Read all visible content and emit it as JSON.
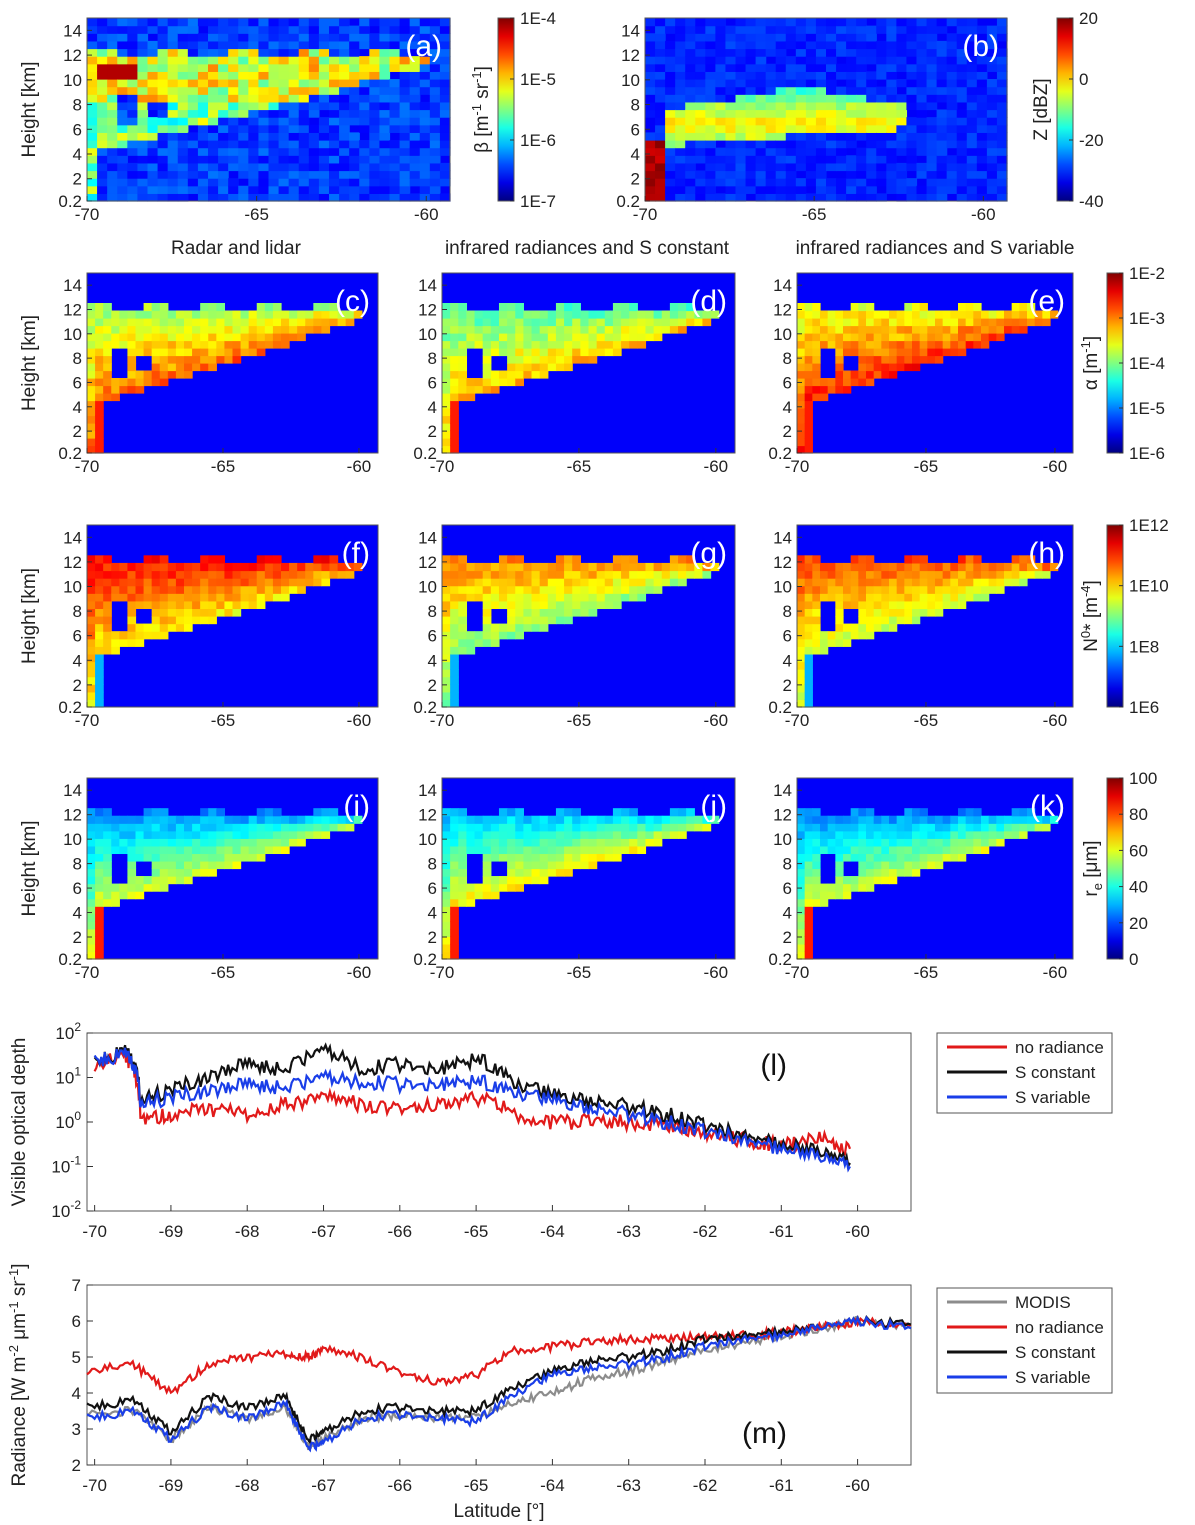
{
  "figure": {
    "column_titles": [
      "Radar and lidar",
      "infrared radiances and S constant",
      "infrared radiances and S variable"
    ]
  },
  "chart_data": [
    {
      "type": "heatmap",
      "panel": "(a)",
      "variable": "backscatter",
      "xlabel": "",
      "ylabel": "Height [km]",
      "xlim": [
        -70,
        -59.3
      ],
      "xticks": [
        "-70",
        "-65",
        "-60"
      ],
      "ylim": [
        0.2,
        15
      ],
      "yticks": [
        "0.2",
        "2",
        "4",
        "6",
        "8",
        "10",
        "12",
        "14"
      ],
      "colorbar": {
        "label": "β [m-1 sr-1]",
        "label_parts": [
          "β [m",
          "-1",
          " sr",
          "-1",
          "]"
        ],
        "ticks": [
          "1E-4",
          "1E-5",
          "1E-6",
          "1E-7"
        ],
        "scale": "log"
      }
    },
    {
      "type": "heatmap",
      "panel": "(b)",
      "variable": "reflectivity",
      "xlabel": "",
      "ylabel": "",
      "xlim": [
        -70,
        -59.3
      ],
      "xticks": [
        "-70",
        "-65",
        "-60"
      ],
      "ylim": [
        0.2,
        15
      ],
      "yticks": [
        "0.2",
        "2",
        "4",
        "6",
        "8",
        "10",
        "12",
        "14"
      ],
      "colorbar": {
        "label": "Z [dBZ]",
        "ticks": [
          "20",
          "0",
          "-20",
          "-40"
        ],
        "scale": "linear"
      }
    },
    {
      "type": "heatmap",
      "panel": "(c)",
      "variable": "extinction",
      "ylabel": "Height [km]",
      "xlim": [
        -70,
        -59.3
      ],
      "xticks": [
        "-70",
        "-65",
        "-60"
      ],
      "ylim": [
        0.2,
        15
      ],
      "yticks": [
        "0.2",
        "2",
        "4",
        "6",
        "8",
        "10",
        "12",
        "14"
      ]
    },
    {
      "type": "heatmap",
      "panel": "(d)",
      "variable": "extinction",
      "ylabel": "",
      "xlim": [
        -70,
        -59.3
      ],
      "xticks": [
        "-70",
        "-65",
        "-60"
      ],
      "ylim": [
        0.2,
        15
      ],
      "yticks": [
        "0.2",
        "2",
        "4",
        "6",
        "8",
        "10",
        "12",
        "14"
      ]
    },
    {
      "type": "heatmap",
      "panel": "(e)",
      "variable": "extinction",
      "ylabel": "",
      "xlim": [
        -70,
        -59.3
      ],
      "xticks": [
        "-70",
        "-65",
        "-60"
      ],
      "ylim": [
        0.2,
        15
      ],
      "yticks": [
        "0.2",
        "2",
        "4",
        "6",
        "8",
        "10",
        "12",
        "14"
      ],
      "colorbar": {
        "label": "α [m-1]",
        "label_parts": [
          "α [m",
          "-1",
          "]"
        ],
        "ticks": [
          "1E-2",
          "1E-3",
          "1E-4",
          "1E-5",
          "1E-6"
        ],
        "scale": "log"
      }
    },
    {
      "type": "heatmap",
      "panel": "(f)",
      "variable": "N0star",
      "ylabel": "Height [km]",
      "xlim": [
        -70,
        -59.3
      ],
      "xticks": [
        "-70",
        "-65",
        "-60"
      ],
      "ylim": [
        0.2,
        15
      ],
      "yticks": [
        "0.2",
        "2",
        "4",
        "6",
        "8",
        "10",
        "12",
        "14"
      ]
    },
    {
      "type": "heatmap",
      "panel": "(g)",
      "variable": "N0star",
      "ylabel": "",
      "xlim": [
        -70,
        -59.3
      ],
      "xticks": [
        "-70",
        "-65",
        "-60"
      ],
      "ylim": [
        0.2,
        15
      ],
      "yticks": [
        "0.2",
        "2",
        "4",
        "6",
        "8",
        "10",
        "12",
        "14"
      ]
    },
    {
      "type": "heatmap",
      "panel": "(h)",
      "variable": "N0star",
      "ylabel": "",
      "xlim": [
        -70,
        -59.3
      ],
      "xticks": [
        "-70",
        "-65",
        "-60"
      ],
      "ylim": [
        0.2,
        15
      ],
      "yticks": [
        "0.2",
        "2",
        "4",
        "6",
        "8",
        "10",
        "12",
        "14"
      ],
      "colorbar": {
        "label": "N0* [m-4]",
        "label_parts": [
          "N",
          "0",
          "* [m",
          "-4",
          "]"
        ],
        "ticks": [
          "1E12",
          "1E10",
          "1E8",
          "1E6"
        ],
        "scale": "log"
      }
    },
    {
      "type": "heatmap",
      "panel": "(i)",
      "variable": "re",
      "ylabel": "Height [km]",
      "xlim": [
        -70,
        -59.3
      ],
      "xticks": [
        "-70",
        "-65",
        "-60"
      ],
      "ylim": [
        0.2,
        15
      ],
      "yticks": [
        "0.2",
        "2",
        "4",
        "6",
        "8",
        "10",
        "12",
        "14"
      ]
    },
    {
      "type": "heatmap",
      "panel": "(j)",
      "variable": "re",
      "ylabel": "",
      "xlim": [
        -70,
        -59.3
      ],
      "xticks": [
        "-70",
        "-65",
        "-60"
      ],
      "ylim": [
        0.2,
        15
      ],
      "yticks": [
        "0.2",
        "2",
        "4",
        "6",
        "8",
        "10",
        "12",
        "14"
      ]
    },
    {
      "type": "heatmap",
      "panel": "(k)",
      "variable": "re",
      "ylabel": "",
      "xlim": [
        -70,
        -59.3
      ],
      "xticks": [
        "-70",
        "-65",
        "-60"
      ],
      "ylim": [
        0.2,
        15
      ],
      "yticks": [
        "0.2",
        "2",
        "4",
        "6",
        "8",
        "10",
        "12",
        "14"
      ],
      "colorbar": {
        "label": "re [μm]",
        "label_parts": [
          "r",
          "e",
          " [μm]"
        ],
        "ticks": [
          "100",
          "80",
          "60",
          "40",
          "20",
          "0"
        ],
        "scale": "linear"
      }
    },
    {
      "type": "line",
      "panel": "(l)",
      "xlabel": "",
      "ylabel": "Visible optical depth",
      "xlim": [
        -70.1,
        -59.3
      ],
      "xticks": [
        "-70",
        "-69",
        "-68",
        "-67",
        "-66",
        "-65",
        "-64",
        "-63",
        "-62",
        "-61",
        "-60"
      ],
      "yscale": "log",
      "ylim": [
        0.01,
        100
      ],
      "yticks": [
        "10-2",
        "10-1",
        "100",
        "101",
        "102"
      ],
      "legend": {
        "position": "outside-right",
        "entries": [
          "no radiance",
          "S constant",
          "S variable"
        ]
      },
      "x": [
        -70,
        -69.6,
        -69.4,
        -69,
        -68.5,
        -68,
        -67.5,
        -67,
        -66.5,
        -66,
        -65.5,
        -65,
        -64.5,
        -64,
        -63.5,
        -63,
        -62.5,
        -62,
        -61.5,
        -61,
        -60.5,
        -60.1
      ],
      "series": [
        {
          "name": "no radiance",
          "color": "#e11a1a",
          "values": [
            18,
            30,
            1.2,
            1.4,
            2.0,
            1.5,
            2.5,
            3.5,
            2.5,
            2.2,
            2.5,
            3.5,
            1.5,
            1.0,
            1.0,
            1.0,
            0.8,
            0.6,
            0.4,
            0.3,
            0.4,
            0.25
          ]
        },
        {
          "name": "S constant",
          "color": "#111111",
          "values": [
            20,
            40,
            3.0,
            5.0,
            10,
            20,
            15,
            40,
            15,
            20,
            15,
            25,
            8,
            4,
            3,
            2.2,
            1.5,
            0.8,
            0.5,
            0.3,
            0.2,
            0.12
          ]
        },
        {
          "name": "S variable",
          "color": "#1a3ee8",
          "values": [
            22,
            35,
            2.5,
            3.5,
            5,
            7,
            6,
            10,
            8,
            7,
            7,
            8,
            5,
            3,
            2.0,
            1.5,
            1.0,
            0.6,
            0.4,
            0.25,
            0.15,
            0.1
          ]
        }
      ]
    },
    {
      "type": "line",
      "panel": "(m)",
      "xlabel": "Latitude [°]",
      "ylabel": "Radiance [W m-2 μm-1 sr-1]",
      "ylabel_parts": [
        "Radiance [W m",
        "-2",
        " μm",
        "-1",
        " sr",
        "-1",
        "]"
      ],
      "xlim": [
        -70.1,
        -59.3
      ],
      "xticks": [
        "-70",
        "-69",
        "-68",
        "-67",
        "-66",
        "-65",
        "-64",
        "-63",
        "-62",
        "-61",
        "-60"
      ],
      "ylim": [
        2,
        7
      ],
      "yticks": [
        "2",
        "3",
        "4",
        "5",
        "6",
        "7"
      ],
      "legend": {
        "position": "outside-right",
        "entries": [
          "MODIS",
          "no radiance",
          "S constant",
          "S variable"
        ]
      },
      "x": [
        -70.1,
        -69.5,
        -69,
        -68.5,
        -68,
        -67.5,
        -67.2,
        -67,
        -66.5,
        -66,
        -65.5,
        -65,
        -64.5,
        -64,
        -63.5,
        -63,
        -62.5,
        -62,
        -61.5,
        -61,
        -60.5,
        -60,
        -59.3
      ],
      "series": [
        {
          "name": "MODIS",
          "color": "#8c8c8c",
          "values": [
            3.4,
            3.5,
            2.7,
            3.6,
            3.3,
            3.6,
            2.5,
            2.7,
            3.3,
            3.4,
            3.3,
            3.3,
            3.8,
            4.0,
            4.4,
            4.6,
            4.9,
            5.2,
            5.4,
            5.6,
            5.8,
            6.0,
            5.8
          ]
        },
        {
          "name": "no radiance",
          "color": "#e11a1a",
          "values": [
            4.6,
            4.8,
            4.0,
            4.8,
            5.0,
            5.1,
            5.0,
            5.2,
            5.0,
            4.6,
            4.3,
            4.5,
            5.2,
            5.3,
            5.4,
            5.5,
            5.5,
            5.6,
            5.6,
            5.7,
            5.8,
            6.0,
            5.9
          ]
        },
        {
          "name": "S constant",
          "color": "#111111",
          "values": [
            3.6,
            3.8,
            2.9,
            3.9,
            3.6,
            3.9,
            2.7,
            2.9,
            3.5,
            3.6,
            3.5,
            3.5,
            4.2,
            4.6,
            4.9,
            5.0,
            5.2,
            5.5,
            5.6,
            5.7,
            5.8,
            6.0,
            5.9
          ]
        },
        {
          "name": "S variable",
          "color": "#1a3ee8",
          "values": [
            3.3,
            3.5,
            2.7,
            3.6,
            3.3,
            3.7,
            2.5,
            2.6,
            3.3,
            3.4,
            3.3,
            3.2,
            4.0,
            4.5,
            4.7,
            4.8,
            5.0,
            5.3,
            5.5,
            5.6,
            5.8,
            6.0,
            5.8
          ]
        }
      ],
      "annotations": [
        "(m)"
      ]
    }
  ]
}
